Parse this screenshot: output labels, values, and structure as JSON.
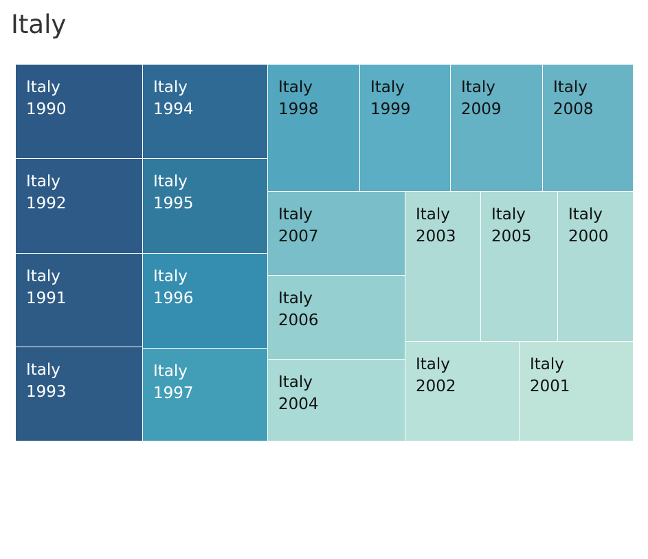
{
  "title": "Italy",
  "chart_data": {
    "type": "treemap",
    "title": "Italy",
    "tiles": [
      {
        "country": "Italy",
        "year": "1990",
        "color": "#2d5986",
        "text_color": "#ffffff"
      },
      {
        "country": "Italy",
        "year": "1992",
        "color": "#2d5a86",
        "text_color": "#ffffff"
      },
      {
        "country": "Italy",
        "year": "1991",
        "color": "#2d5b86",
        "text_color": "#ffffff"
      },
      {
        "country": "Italy",
        "year": "1993",
        "color": "#2d5b86",
        "text_color": "#ffffff"
      },
      {
        "country": "Italy",
        "year": "1994",
        "color": "#2f6a94",
        "text_color": "#ffffff"
      },
      {
        "country": "Italy",
        "year": "1995",
        "color": "#317a9d",
        "text_color": "#ffffff"
      },
      {
        "country": "Italy",
        "year": "1996",
        "color": "#358daf",
        "text_color": "#ffffff"
      },
      {
        "country": "Italy",
        "year": "1997",
        "color": "#429db7",
        "text_color": "#ffffff"
      },
      {
        "country": "Italy",
        "year": "1998",
        "color": "#52a7be",
        "text_color": "#111111"
      },
      {
        "country": "Italy",
        "year": "1999",
        "color": "#5baec3",
        "text_color": "#111111"
      },
      {
        "country": "Italy",
        "year": "2009",
        "color": "#65b2c4",
        "text_color": "#111111"
      },
      {
        "country": "Italy",
        "year": "2008",
        "color": "#68b4c5",
        "text_color": "#111111"
      },
      {
        "country": "Italy",
        "year": "2007",
        "color": "#79bec8",
        "text_color": "#111111"
      },
      {
        "country": "Italy",
        "year": "2006",
        "color": "#96cfd0",
        "text_color": "#111111"
      },
      {
        "country": "Italy",
        "year": "2004",
        "color": "#a9dad5",
        "text_color": "#111111"
      },
      {
        "country": "Italy",
        "year": "2003",
        "color": "#aedbd6",
        "text_color": "#111111"
      },
      {
        "country": "Italy",
        "year": "2005",
        "color": "#aedbd6",
        "text_color": "#111111"
      },
      {
        "country": "Italy",
        "year": "2000",
        "color": "#aedbd6",
        "text_color": "#111111"
      },
      {
        "country": "Italy",
        "year": "2002",
        "color": "#b8e1d9",
        "text_color": "#111111"
      },
      {
        "country": "Italy",
        "year": "2001",
        "color": "#bee4da",
        "text_color": "#111111"
      }
    ]
  }
}
